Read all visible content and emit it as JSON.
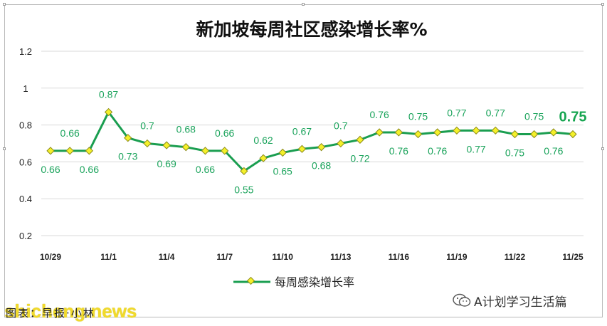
{
  "source_text": "图表：早报·小林",
  "watermark": "shicheng.news",
  "wechat_account": "A计划学习生活篇",
  "colors": {
    "line": "#1a9e50",
    "marker_fill": "#f4f02a",
    "marker_stroke": "#8a8a1a",
    "grid": "#d9d9d9"
  },
  "chart_data": {
    "type": "line",
    "title": "新加坡每周社区感染增长率%",
    "xlabel": "",
    "ylabel": "",
    "ylim": [
      0.2,
      1.2
    ],
    "yticks": [
      "0.2",
      "0.4",
      "0.6",
      "0.8",
      "1",
      "1.2"
    ],
    "grid": "horizontal",
    "legend_position": "bottom",
    "x_tick_labels": [
      "10/29",
      "11/1",
      "11/4",
      "11/7",
      "11/10",
      "11/13",
      "11/16",
      "11/19",
      "11/22",
      "11/25"
    ],
    "x": [
      "10/29",
      "10/30",
      "10/31",
      "11/1",
      "11/2",
      "11/3",
      "11/4",
      "11/5",
      "11/6",
      "11/7",
      "11/8",
      "11/9",
      "11/10",
      "11/11",
      "11/12",
      "11/13",
      "11/14",
      "11/15",
      "11/16",
      "11/17",
      "11/18",
      "11/19",
      "11/20",
      "11/21",
      "11/22",
      "11/23",
      "11/24",
      "11/25"
    ],
    "series": [
      {
        "name": "每周感染增长率",
        "values": [
          0.66,
          0.66,
          0.66,
          0.87,
          0.73,
          0.7,
          0.69,
          0.68,
          0.66,
          0.66,
          0.55,
          0.62,
          0.65,
          0.67,
          0.68,
          0.7,
          0.72,
          0.76,
          0.76,
          0.75,
          0.76,
          0.77,
          0.77,
          0.77,
          0.75,
          0.75,
          0.76,
          0.75
        ],
        "labels": [
          "0.66",
          "0.66",
          "0.66",
          "0.87",
          "0.73",
          "0.7",
          "0.69",
          "0.68",
          "0.66",
          "0.66",
          "0.55",
          "0.62",
          "0.65",
          "0.67",
          "0.68",
          "0.7",
          "0.72",
          "0.76",
          "0.76",
          "0.75",
          "0.76",
          "0.77",
          "0.77",
          "0.77",
          "0.75",
          "0.75",
          "0.76",
          "0.75"
        ]
      }
    ]
  }
}
